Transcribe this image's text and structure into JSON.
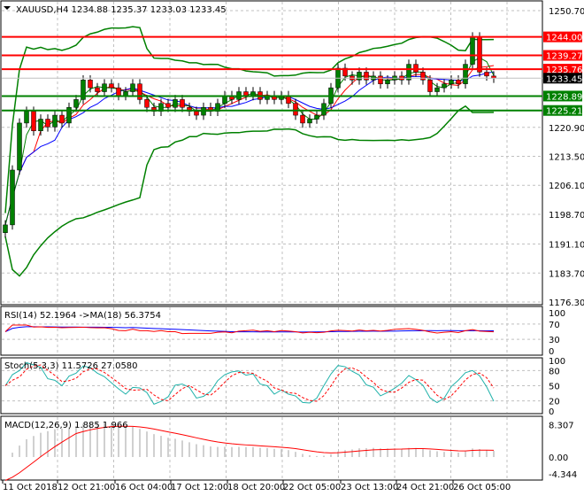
{
  "header": {
    "symbol": "XAUUSD,H4",
    "open": "1234.88",
    "high": "1235.37",
    "low": "1233.03",
    "close": "1233.45"
  },
  "price_axis": {
    "ticks": [
      "1250.70",
      "1220.90",
      "1213.50",
      "1206.10",
      "1198.70",
      "1191.10",
      "1183.70",
      "1176.30"
    ],
    "top": 1250.7,
    "bottom": 1176.3
  },
  "levels": [
    {
      "value": "1244.00",
      "color": "#ff0000"
    },
    {
      "value": "1239.27",
      "color": "#ff0000"
    },
    {
      "value": "1235.76",
      "color": "#ff0000"
    },
    {
      "value": "1228.89",
      "color": "#008000"
    },
    {
      "value": "1225.21",
      "color": "#008000"
    }
  ],
  "current_price": "1233.45",
  "closes": [
    1196,
    1210,
    1222,
    1225,
    1220,
    1223,
    1221,
    1224,
    1222,
    1226,
    1228,
    1233,
    1231,
    1230,
    1232,
    1231,
    1229,
    1230,
    1232,
    1228,
    1226,
    1225,
    1227,
    1226,
    1228,
    1226,
    1225,
    1224,
    1226,
    1225,
    1227,
    1229,
    1228,
    1230,
    1229,
    1230,
    1228,
    1229,
    1228,
    1229,
    1227,
    1224,
    1222,
    1223,
    1224,
    1227,
    1231,
    1236,
    1234,
    1233,
    1235,
    1233,
    1234,
    1232,
    1233,
    1234,
    1233,
    1237,
    1235,
    1233,
    1230,
    1231,
    1232,
    1233,
    1232,
    1237,
    1244,
    1235,
    1234,
    1233.45
  ],
  "rsi": {
    "label": "RSI(14) 52.1964  ->MA(18) 56.3754",
    "ticks": [
      "100",
      "70",
      "30",
      "0"
    ]
  },
  "stoch": {
    "label": "Stoch(5,3,3) 11.5726 27.0580",
    "ticks": [
      "100",
      "80",
      "50",
      "20",
      "0"
    ]
  },
  "macd": {
    "label": "MACD(12,26,9) 1.885 1.966",
    "ticks": [
      "8.307",
      "0.00",
      "-4.344"
    ]
  },
  "time_axis": [
    "11 Oct 2018",
    "12 Oct 21:00",
    "16 Oct 04:00",
    "17 Oct 12:00",
    "18 Oct 20:00",
    "22 Oct 05:00",
    "23 Oct 13:00",
    "24 Oct 21:00",
    "26 Oct 05:00"
  ],
  "colors": {
    "bull": "#008000",
    "bear": "#ff0000",
    "bands": "#008000",
    "rsi": "#ff0000",
    "rsi_ma": "#0000ff",
    "stoch_main": "#20b2aa",
    "stoch_signal": "#ff0000",
    "macd_signal": "#ff0000",
    "macd_hist": "#c0c0c0"
  }
}
